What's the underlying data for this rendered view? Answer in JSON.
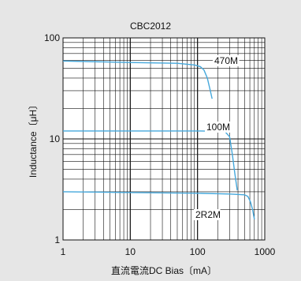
{
  "chart_data": {
    "type": "line",
    "title": "CBC2012",
    "xlabel": "直流電流DC Bias〔mA〕",
    "ylabel": "Inductance〔μH〕",
    "xscale": "log",
    "yscale": "log",
    "xlim": [
      1,
      1000
    ],
    "ylim": [
      1,
      100
    ],
    "xticks": [
      1,
      10,
      100,
      1000
    ],
    "xtick_labels": [
      "1",
      "10",
      "100",
      "1000"
    ],
    "yticks": [
      1,
      10,
      100
    ],
    "ytick_labels": [
      "1",
      "10",
      "100"
    ],
    "grid": true,
    "legend": "none",
    "series": [
      {
        "name": "470M",
        "color": "#45a8dc",
        "points": [
          [
            1,
            59
          ],
          [
            10,
            57
          ],
          [
            50,
            56
          ],
          [
            90,
            54
          ],
          [
            110,
            52
          ],
          [
            125,
            48
          ],
          [
            140,
            40
          ],
          [
            155,
            30
          ],
          [
            165,
            25
          ]
        ]
      },
      {
        "name": "100M",
        "color": "#45a8dc",
        "points": [
          [
            1,
            12
          ],
          [
            10,
            12
          ],
          [
            100,
            12
          ],
          [
            200,
            11.9
          ],
          [
            260,
            11.7
          ],
          [
            300,
            10.5
          ],
          [
            330,
            7
          ],
          [
            360,
            4.5
          ],
          [
            390,
            3.1
          ]
        ]
      },
      {
        "name": "2R2M",
        "color": "#45a8dc",
        "points": [
          [
            1,
            3
          ],
          [
            10,
            2.95
          ],
          [
            100,
            2.9
          ],
          [
            300,
            2.85
          ],
          [
            500,
            2.8
          ],
          [
            560,
            2.7
          ],
          [
            610,
            2.4
          ],
          [
            660,
            2
          ],
          [
            700,
            1.6
          ]
        ]
      }
    ],
    "annotations": [
      {
        "text": "470M",
        "series": 0
      },
      {
        "text": "100M",
        "series": 1
      },
      {
        "text": "2R2M",
        "series": 2
      }
    ]
  }
}
